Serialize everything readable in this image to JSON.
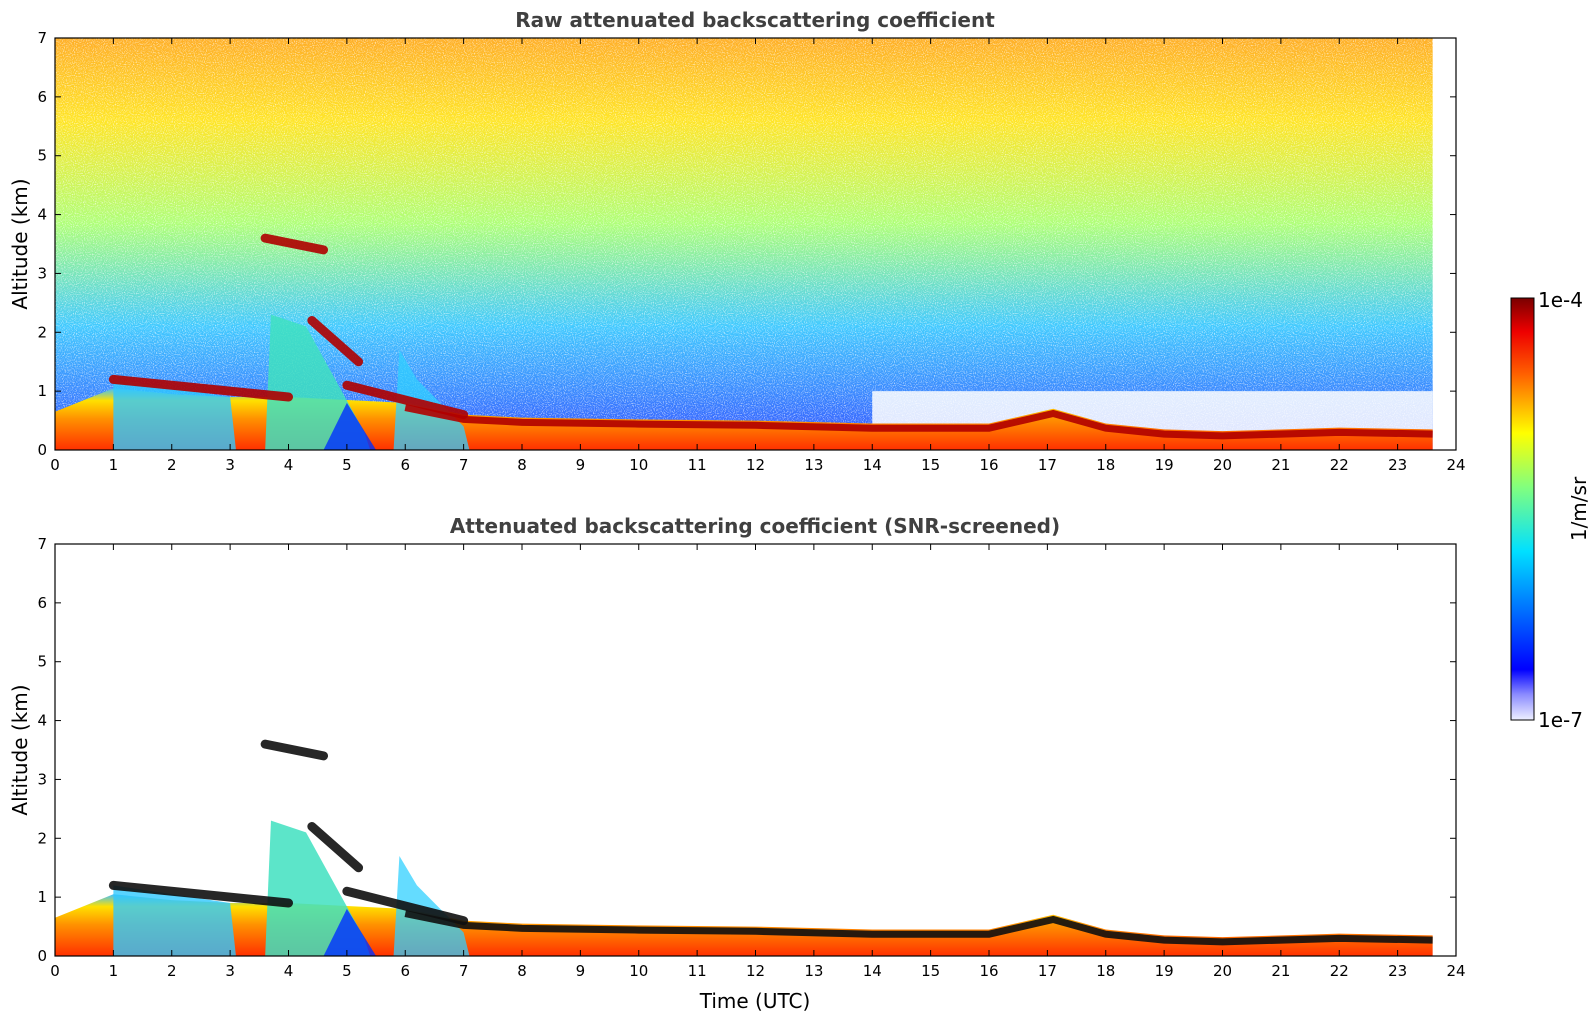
{
  "chart_data": [
    {
      "type": "heatmap",
      "title": "Raw attenuated backscattering coefficient",
      "xlabel": "",
      "ylabel": "Altitude (km)",
      "xlim": [
        0,
        24
      ],
      "ylim": [
        0,
        7
      ],
      "x_ticks": [
        "0",
        "1",
        "2",
        "3",
        "4",
        "5",
        "6",
        "7",
        "8",
        "9",
        "10",
        "11",
        "12",
        "13",
        "14",
        "15",
        "16",
        "17",
        "18",
        "19",
        "20",
        "21",
        "22",
        "23",
        "24"
      ],
      "y_ticks": [
        "0",
        "1",
        "2",
        "3",
        "4",
        "5",
        "6",
        "7"
      ],
      "data_extent_x": [
        0,
        23.6
      ],
      "boundary_layer_top_km": [
        [
          0,
          0.65
        ],
        [
          1,
          1.05
        ],
        [
          2,
          0.95
        ],
        [
          3,
          0.9
        ],
        [
          4,
          0.9
        ],
        [
          5,
          0.85
        ],
        [
          6,
          0.8
        ],
        [
          7,
          0.6
        ],
        [
          8,
          0.55
        ],
        [
          10,
          0.52
        ],
        [
          12,
          0.5
        ],
        [
          14,
          0.45
        ],
        [
          16,
          0.45
        ],
        [
          17.1,
          0.7
        ],
        [
          18,
          0.45
        ],
        [
          19,
          0.35
        ],
        [
          20,
          0.32
        ],
        [
          22,
          0.38
        ],
        [
          23.6,
          0.35
        ]
      ],
      "aerosol_layers": [
        {
          "x": [
            1.0,
            4.0
          ],
          "alt_km": [
            1.2,
            0.9
          ]
        },
        {
          "x": [
            4.4,
            5.2
          ],
          "alt_km": [
            2.2,
            1.5
          ]
        },
        {
          "x": [
            5.0,
            7.0
          ],
          "alt_km": [
            1.1,
            0.6
          ]
        },
        {
          "x": [
            3.6,
            4.6
          ],
          "alt_km": [
            3.6,
            3.4
          ]
        }
      ],
      "colorbar": {
        "min": "1e-7",
        "max": "1e-4",
        "label": "1/m/sr",
        "scale": "log",
        "colormap": "jet"
      }
    },
    {
      "type": "heatmap",
      "title": "Attenuated backscattering coefficient (SNR-screened)",
      "xlabel": "Time (UTC)",
      "ylabel": "Altitude (km)",
      "xlim": [
        0,
        24
      ],
      "ylim": [
        0,
        7
      ],
      "x_ticks": [
        "0",
        "1",
        "2",
        "3",
        "4",
        "5",
        "6",
        "7",
        "8",
        "9",
        "10",
        "11",
        "12",
        "13",
        "14",
        "15",
        "16",
        "17",
        "18",
        "19",
        "20",
        "21",
        "22",
        "23",
        "24"
      ],
      "y_ticks": [
        "0",
        "1",
        "2",
        "3",
        "4",
        "5",
        "6",
        "7"
      ],
      "data_extent_x": [
        0,
        23.6
      ],
      "colorbar": {
        "min": "1e-7",
        "max": "1e-4",
        "label": "1/m/sr",
        "scale": "log",
        "colormap": "jet"
      }
    }
  ]
}
